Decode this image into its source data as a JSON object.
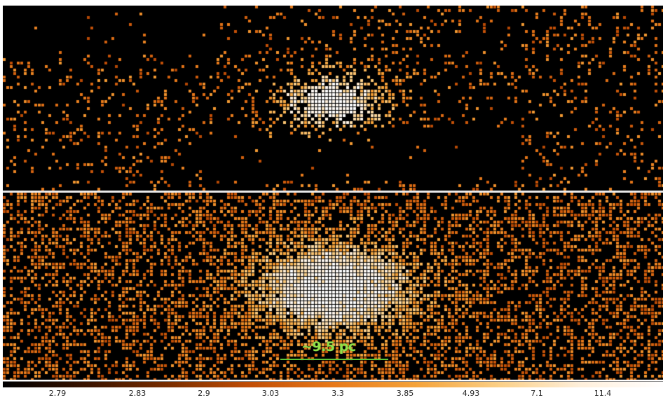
{
  "image": {
    "panels": [
      "observed-xray-map",
      "model-xray-map"
    ],
    "colormap": "heat",
    "background_color": "#000000"
  },
  "scalebar": {
    "label": "~9.5 pc",
    "color": "#5ec83a"
  },
  "colorbar": {
    "ticks": [
      "2.79",
      "2.83",
      "2.9",
      "3.03",
      "3.3",
      "3.85",
      "4.93",
      "7.1",
      "11.4"
    ],
    "colors": [
      "#000000",
      "#3a1400",
      "#7a2e00",
      "#c24e06",
      "#e8791a",
      "#f5a33a",
      "#fbcf86",
      "#fff0dc",
      "#ffffff"
    ]
  }
}
